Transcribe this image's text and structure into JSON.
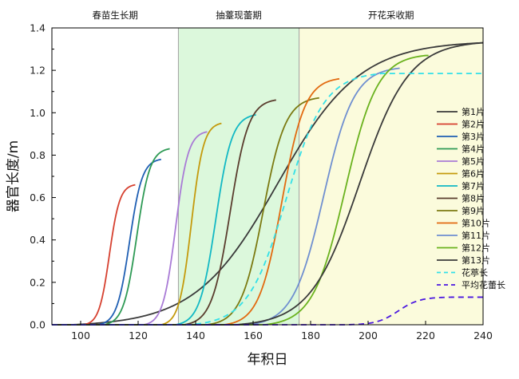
{
  "chart_data": {
    "type": "line",
    "xlabel": "年积日",
    "ylabel": "器官长度/m",
    "xlim": [
      90,
      240
    ],
    "ylim": [
      0,
      1.4
    ],
    "xticks": [
      100,
      120,
      140,
      160,
      180,
      200,
      220,
      240
    ],
    "yticks": [
      "0.0",
      "0.2",
      "0.4",
      "0.6",
      "0.8",
      "1.0",
      "1.2",
      "1.4"
    ],
    "grid": false,
    "legend_position": "right",
    "phases": [
      {
        "label": "春苗生长期",
        "start": 90,
        "end": 134,
        "color": "#ffffff"
      },
      {
        "label": "抽薹现蕾期",
        "start": 134,
        "end": 176,
        "color": "#dcf8dc"
      },
      {
        "label": "开花采收期",
        "start": 176,
        "end": 240,
        "color": "#fbfbdc"
      }
    ],
    "series": [
      {
        "name": "第1片",
        "color": "#3a3a3a",
        "dash": false,
        "start": 97,
        "end": 240,
        "max": 1.33,
        "end_x": 240
      },
      {
        "name": "第2片",
        "color": "#d6402f",
        "dash": false,
        "start": 101,
        "end": 119,
        "max": 0.66,
        "end_x": 119
      },
      {
        "name": "第3片",
        "color": "#1f5fb3",
        "dash": false,
        "start": 106,
        "end": 128,
        "max": 0.78,
        "end_x": 128
      },
      {
        "name": "第4片",
        "color": "#2e9a55",
        "dash": false,
        "start": 108,
        "end": 131,
        "max": 0.83,
        "end_x": 131
      },
      {
        "name": "第5片",
        "color": "#a97bd6",
        "dash": false,
        "start": 122,
        "end": 144,
        "max": 0.91,
        "end_x": 144
      },
      {
        "name": "第6片",
        "color": "#c49a0c",
        "dash": false,
        "start": 128,
        "end": 149,
        "max": 0.95,
        "end_x": 149
      },
      {
        "name": "第7片",
        "color": "#11b8c4",
        "dash": false,
        "start": 133,
        "end": 161,
        "max": 0.99,
        "end_x": 161
      },
      {
        "name": "第8片",
        "color": "#5a3d2e",
        "dash": false,
        "start": 136,
        "end": 168,
        "max": 1.06,
        "end_x": 168
      },
      {
        "name": "第9片",
        "color": "#7c7a12",
        "dash": false,
        "start": 144,
        "end": 183,
        "max": 1.07,
        "end_x": 183
      },
      {
        "name": "第10片",
        "color": "#e26a10",
        "dash": false,
        "start": 150,
        "end": 190,
        "max": 1.16,
        "end_x": 190
      },
      {
        "name": "第11片",
        "color": "#6f8fd0",
        "dash": false,
        "start": 158,
        "end": 211,
        "max": 1.21,
        "end_x": 211
      },
      {
        "name": "第12片",
        "color": "#6ab21e",
        "dash": false,
        "start": 164,
        "end": 220,
        "max": 1.27,
        "end_x": 221
      },
      {
        "name": "第13片",
        "color": "#3a3a3a",
        "dash": false,
        "start": 154,
        "end": 240,
        "max": 1.33,
        "end_x": 240
      },
      {
        "name": "花葶长",
        "color": "#33e0e8",
        "dash": true,
        "start": 138,
        "end": 205,
        "max": 1.185,
        "end_x": 240
      },
      {
        "name": "平均花蕾长",
        "color": "#4a16e0",
        "dash": true,
        "start": 192,
        "end": 229,
        "max": 0.13,
        "end_x": 240
      }
    ]
  }
}
